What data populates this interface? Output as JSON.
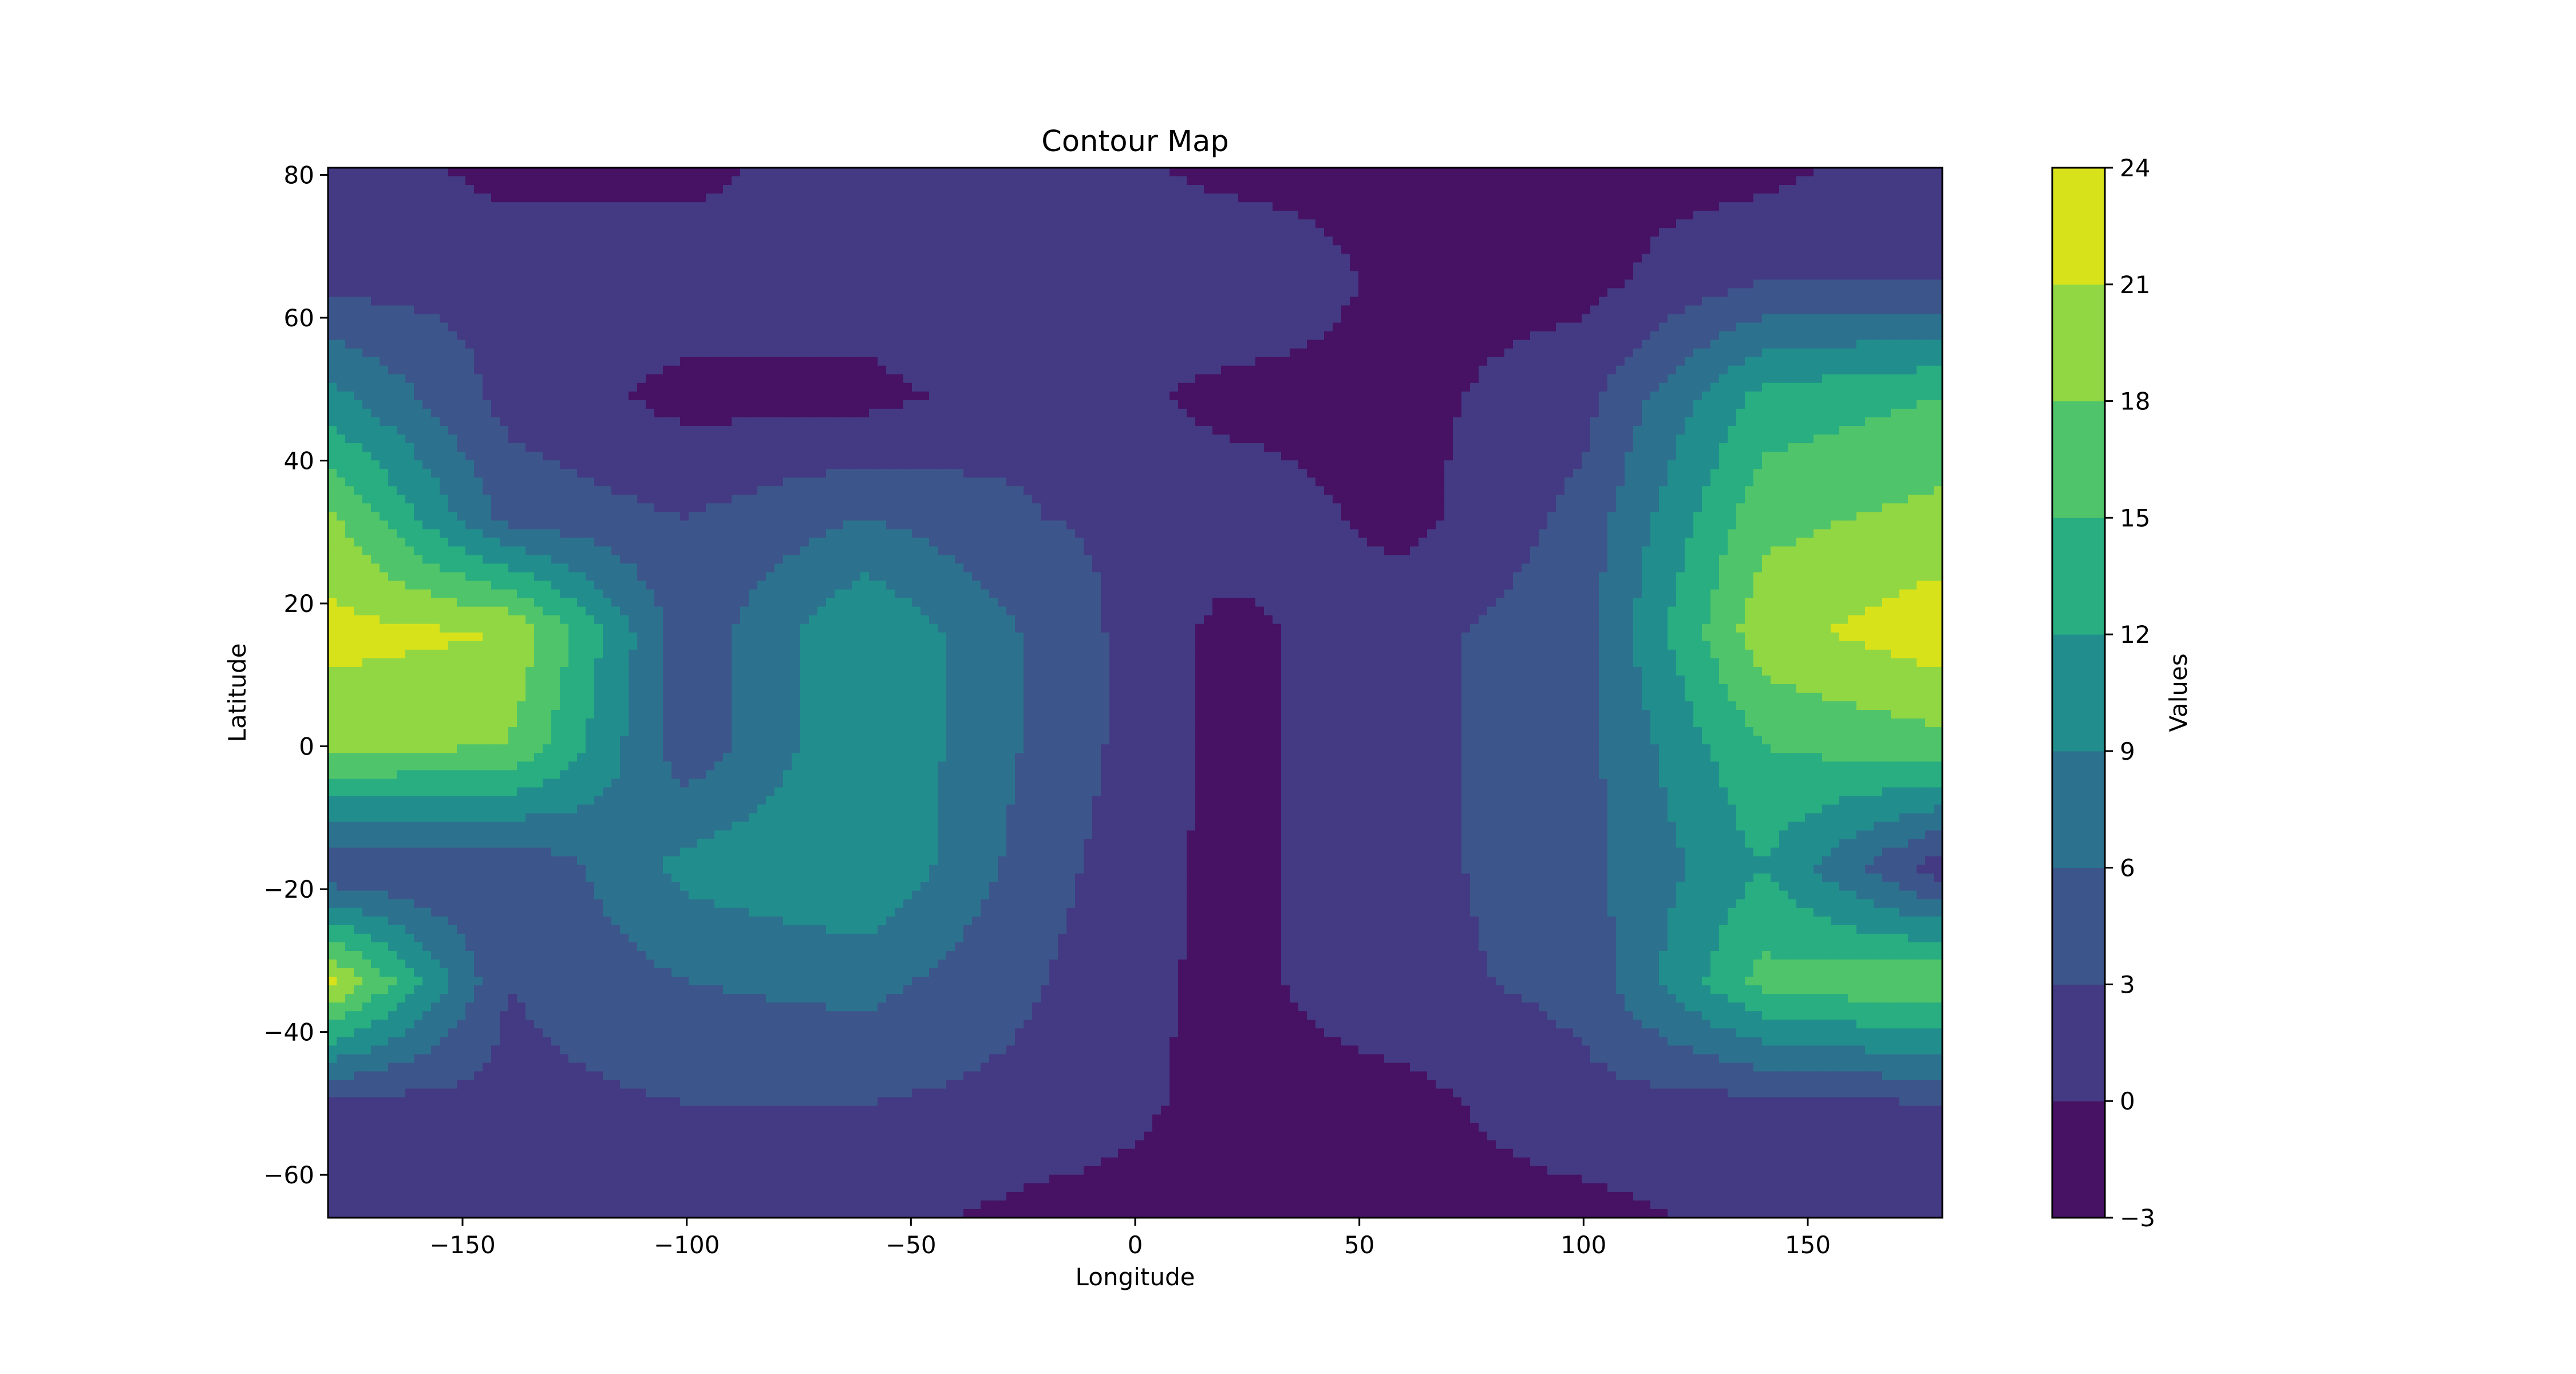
{
  "chart_data": {
    "type": "contour",
    "title": "Contour Map",
    "xlabel": "Longitude",
    "ylabel": "Latitude",
    "xlim": [
      -180,
      180
    ],
    "ylim": [
      -66,
      81
    ],
    "xticks": [
      -150,
      -100,
      -50,
      0,
      50,
      100,
      150
    ],
    "yticks": [
      -60,
      -40,
      -20,
      0,
      20,
      40,
      60,
      80
    ],
    "colorbar": {
      "label": "Values",
      "levels": [
        -3,
        0,
        3,
        6,
        9,
        12,
        15,
        18,
        21,
        24
      ],
      "colors": [
        "#471164",
        "#443a83",
        "#3c568b",
        "#2c728e",
        "#218e8d",
        "#28ae80",
        "#4fc46a",
        "#90d743",
        "#d8e21b"
      ]
    },
    "grid_lon": [
      -180,
      -140,
      -100,
      -60,
      -20,
      20,
      60,
      100,
      140,
      180
    ],
    "grid_lat": [
      -66,
      -50,
      -33,
      -17,
      0,
      16,
      32,
      49,
      65,
      81
    ],
    "values": [
      [
        2,
        2,
        1,
        1,
        -1,
        -1,
        -1,
        -1,
        1,
        1
      ],
      [
        2,
        2,
        3,
        3,
        2,
        -1,
        -1,
        2,
        2,
        3
      ],
      [
        22,
        3,
        6,
        7,
        3,
        -1,
        2,
        4,
        16,
        18
      ],
      [
        3,
        3,
        10,
        12,
        4,
        -1,
        2,
        5,
        12,
        1
      ],
      [
        19,
        18,
        4,
        12,
        5,
        -1,
        2,
        5,
        15,
        17
      ],
      [
        22,
        21,
        4,
        12,
        5,
        -1,
        2,
        5,
        20,
        23
      ],
      [
        19,
        5,
        3,
        6,
        3,
        2,
        -1,
        4,
        17,
        19
      ],
      [
        10,
        2,
        -1,
        -1,
        2,
        -1,
        -1,
        2,
        13,
        15
      ],
      [
        2,
        2,
        2,
        2,
        2,
        3,
        -1,
        -1,
        3,
        3
      ],
      [
        2,
        -1,
        -1,
        2,
        2,
        -1,
        -1,
        -1,
        -1,
        2
      ]
    ]
  }
}
